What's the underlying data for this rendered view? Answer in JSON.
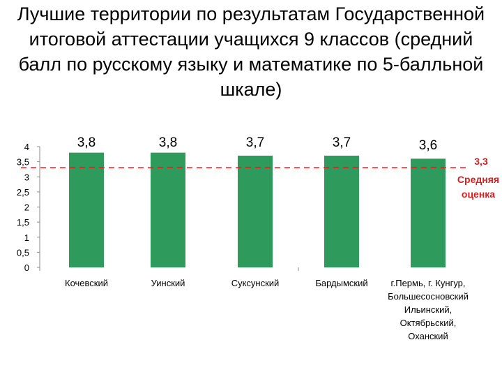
{
  "title": "Лучшие территории по результатам Государственной итоговой аттестации учащихся 9 классов (средний балл по русскому языку и математике по 5-балльной шкале)",
  "title_lines": [
    "Лучшие территории по результатам Государственной",
    "итоговой аттестации учащихся 9 классов (средний",
    "балл по русскому языку и математике по 5-балльной",
    "шкале)"
  ],
  "chart_data": {
    "type": "bar",
    "categories": [
      [
        "Кочевский"
      ],
      [
        "Уинский"
      ],
      [
        "Суксунский"
      ],
      [
        "Бардымский"
      ],
      [
        "г.Пермь, г. Кунгур,",
        "Большесосновский",
        "Ильинский,",
        "Октябрьский,",
        "Оханский"
      ]
    ],
    "values": [
      3.8,
      3.8,
      3.7,
      3.7,
      3.6
    ],
    "value_labels": [
      "3,8",
      "3,8",
      "3,7",
      "3,7",
      "3,6"
    ],
    "ylim": [
      0,
      4
    ],
    "yticks": [
      0,
      0.5,
      1,
      1.5,
      2,
      2.5,
      3,
      3.5,
      4
    ],
    "ytick_labels": [
      "0",
      "0,5",
      "1",
      "1,5",
      "2",
      "2,5",
      "3",
      "3,5",
      "4"
    ],
    "bar_color": "#2e9a5c",
    "reference_line": {
      "value": 3.3,
      "label": "3,3",
      "caption": [
        "Средняя",
        "оценка"
      ],
      "color": "#d62020",
      "style": "dashed"
    },
    "grid": false,
    "legend": "none"
  }
}
